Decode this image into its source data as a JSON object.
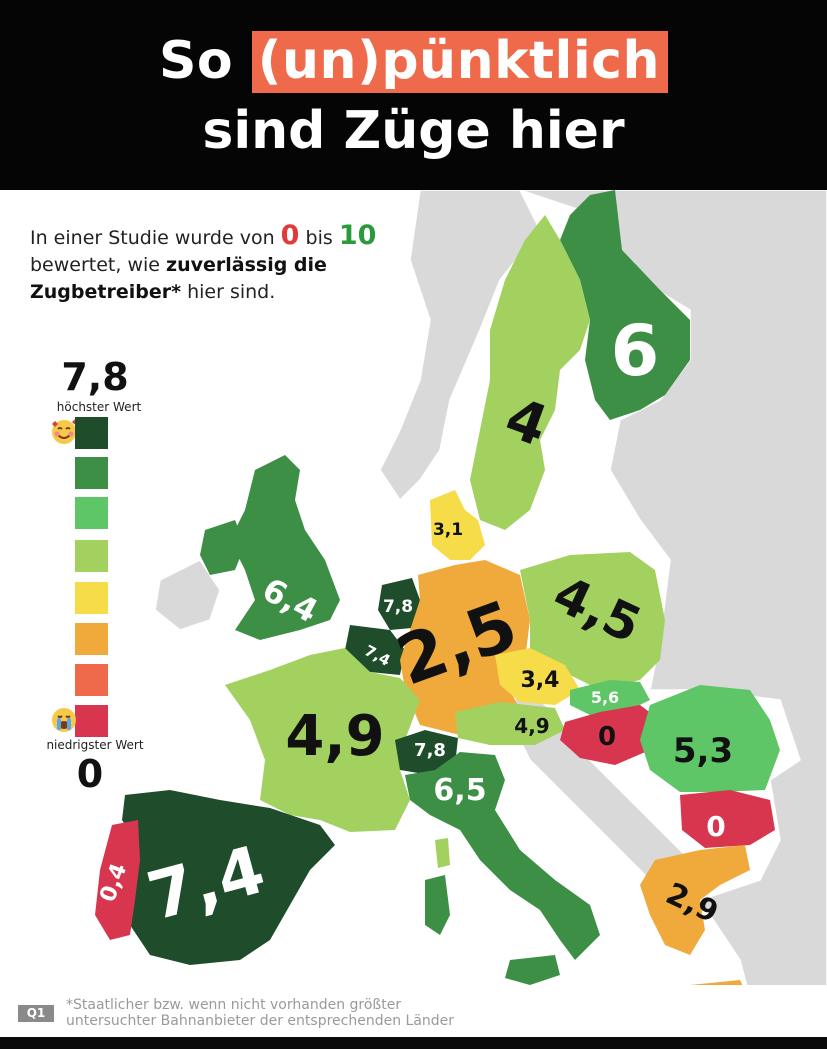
{
  "header": {
    "title_prefix": "So",
    "title_highlight": "(un)pünktlich",
    "title_line2": "sind Züge hier",
    "highlight_color": "#ee6a4a"
  },
  "intro": {
    "part1": "In einer Studie wurde von",
    "zero": "0",
    "part2": "bis",
    "ten": "10",
    "part3": "bewertet, wie",
    "bold1": "zuverlässig die",
    "bold2": "Zugbetreiber*",
    "part4": "hier sind."
  },
  "legend": {
    "max_value": "7,8",
    "max_label": "höchster Wert",
    "min_label": "niedrigster Wert",
    "min_value": "0",
    "top_emoji": "smiling-face-with-hearts",
    "bottom_emoji": "loudly-crying-face",
    "colors": [
      "#1f4d2c",
      "#3c8f45",
      "#5ec666",
      "#a3d160",
      "#f7dc4a",
      "#f0a93b",
      "#ee6a4a",
      "#d8364f"
    ]
  },
  "countries": [
    {
      "name": "Finland",
      "value": "6",
      "color": "#3c8f45"
    },
    {
      "name": "Sweden",
      "value": "4",
      "color": "#a3d160"
    },
    {
      "name": "Denmark",
      "value": "3,1",
      "color": "#f7dc4a"
    },
    {
      "name": "United Kingdom",
      "value": "6,4",
      "color": "#3c8f45"
    },
    {
      "name": "Netherlands",
      "value": "7,8",
      "color": "#1f4d2c"
    },
    {
      "name": "Belgium",
      "value": "7,4",
      "color": "#1f4d2c"
    },
    {
      "name": "Germany",
      "value": "2,5",
      "color": "#f0a93b"
    },
    {
      "name": "Poland",
      "value": "4,5",
      "color": "#a3d160"
    },
    {
      "name": "Czechia",
      "value": "3,4",
      "color": "#f7dc4a"
    },
    {
      "name": "Slovakia",
      "value": "5,6",
      "color": "#5ec666"
    },
    {
      "name": "Austria",
      "value": "4,9",
      "color": "#a3d160"
    },
    {
      "name": "Hungary",
      "value": "0",
      "color": "#d8364f"
    },
    {
      "name": "Romania",
      "value": "5,3",
      "color": "#5ec666"
    },
    {
      "name": "Bulgaria",
      "value": "0",
      "color": "#d8364f"
    },
    {
      "name": "France",
      "value": "4,9",
      "color": "#a3d160"
    },
    {
      "name": "Switzerland",
      "value": "7,8",
      "color": "#1f4d2c"
    },
    {
      "name": "Italy",
      "value": "6,5",
      "color": "#3c8f45"
    },
    {
      "name": "Spain",
      "value": "7,4",
      "color": "#1f4d2c"
    },
    {
      "name": "Portugal",
      "value": "0,4",
      "color": "#d8364f"
    },
    {
      "name": "Greece",
      "value": "2,9",
      "color": "#f0a93b"
    }
  ],
  "footer": {
    "badge": "Q1",
    "line1": "*Staatlicher bzw. wenn nicht vorhanden größter",
    "line2": "untersuchter Bahnanbieter der entsprechenden Länder"
  }
}
